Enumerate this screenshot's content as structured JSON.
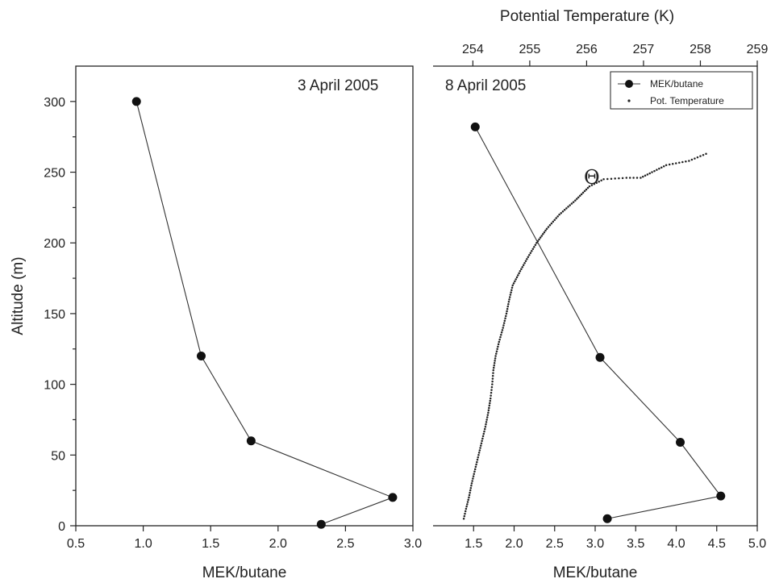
{
  "chart_data": [
    {
      "type": "line",
      "panel": "left",
      "annotation": "3 April 2005",
      "xlabel": "MEK/butane",
      "ylabel": "Altitude (m)",
      "xlim": [
        0.5,
        3.0
      ],
      "ylim": [
        0,
        325
      ],
      "xticks": [
        "0.5",
        "1.0",
        "1.5",
        "2.0",
        "2.5",
        "3.0"
      ],
      "yticks": [
        "0",
        "50",
        "100",
        "150",
        "200",
        "250",
        "300"
      ],
      "series": [
        {
          "values": [
            {
              "x": 0.95,
              "y": 300
            },
            {
              "x": 1.43,
              "y": 120
            },
            {
              "x": 1.8,
              "y": 60
            },
            {
              "x": 2.85,
              "y": 20
            },
            {
              "x": 2.32,
              "y": 1
            }
          ]
        }
      ]
    },
    {
      "type": "line",
      "panel": "right",
      "annotation": "8 April 2005",
      "xlabel": "MEK/butane",
      "x2label": "Potential Temperature (K)",
      "xlim": [
        1.0,
        5.0
      ],
      "x2lim": [
        253.3,
        259.0
      ],
      "ylim": [
        0,
        325
      ],
      "xticks": [
        "1.5",
        "2.0",
        "2.5",
        "3.0",
        "3.5",
        "4.0",
        "4.5",
        "5.0"
      ],
      "x2ticks": [
        "254",
        "255",
        "256",
        "257",
        "258",
        "259"
      ],
      "theta_label": "Θ",
      "legend": {
        "placement": "top-right",
        "entries": [
          "MEK/butane",
          "Pot. Temperature"
        ]
      },
      "series": [
        {
          "name": "MEK/butane",
          "axis": "bottom",
          "values": [
            {
              "x": 1.52,
              "y": 282
            },
            {
              "x": 3.06,
              "y": 119
            },
            {
              "x": 4.05,
              "y": 59
            },
            {
              "x": 4.55,
              "y": 21
            },
            {
              "x": 3.15,
              "y": 5
            }
          ]
        },
        {
          "name": "Pot. Temperature",
          "axis": "top",
          "style": "dotted",
          "values": [
            {
              "x": 253.84,
              "y": 5
            },
            {
              "x": 253.88,
              "y": 12
            },
            {
              "x": 253.93,
              "y": 20
            },
            {
              "x": 253.98,
              "y": 30
            },
            {
              "x": 254.04,
              "y": 40
            },
            {
              "x": 254.1,
              "y": 50
            },
            {
              "x": 254.16,
              "y": 60
            },
            {
              "x": 254.22,
              "y": 70
            },
            {
              "x": 254.27,
              "y": 80
            },
            {
              "x": 254.31,
              "y": 90
            },
            {
              "x": 254.34,
              "y": 100
            },
            {
              "x": 254.36,
              "y": 110
            },
            {
              "x": 254.4,
              "y": 120
            },
            {
              "x": 254.46,
              "y": 130
            },
            {
              "x": 254.53,
              "y": 140
            },
            {
              "x": 254.59,
              "y": 150
            },
            {
              "x": 254.64,
              "y": 160
            },
            {
              "x": 254.7,
              "y": 170
            },
            {
              "x": 254.83,
              "y": 180
            },
            {
              "x": 254.97,
              "y": 190
            },
            {
              "x": 255.12,
              "y": 200
            },
            {
              "x": 255.3,
              "y": 210
            },
            {
              "x": 255.52,
              "y": 220
            },
            {
              "x": 255.8,
              "y": 230
            },
            {
              "x": 256.05,
              "y": 240
            },
            {
              "x": 256.3,
              "y": 245
            },
            {
              "x": 256.7,
              "y": 246
            },
            {
              "x": 256.95,
              "y": 246
            },
            {
              "x": 257.15,
              "y": 250
            },
            {
              "x": 257.4,
              "y": 255
            },
            {
              "x": 257.8,
              "y": 258
            },
            {
              "x": 258.1,
              "y": 263
            }
          ]
        }
      ]
    }
  ]
}
